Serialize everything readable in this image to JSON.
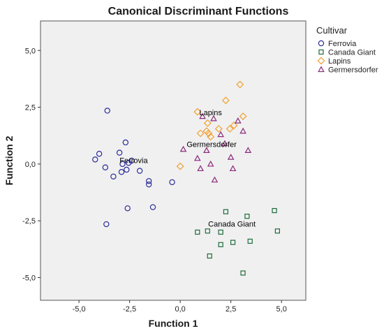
{
  "chart_data": {
    "type": "scatter",
    "title": "Canonical Discriminant Functions",
    "xlabel": "Function 1",
    "ylabel": "Function 2",
    "xlim": [
      -6.9,
      6.2
    ],
    "ylim": [
      -6.0,
      6.3
    ],
    "x_ticks": [
      -5,
      -2.5,
      0,
      2.5,
      5
    ],
    "y_ticks": [
      -5,
      -2.5,
      0,
      2.5,
      5
    ],
    "x_tick_labels": [
      "-5,0",
      "-2,5",
      "0,0",
      "2,5",
      "5,0"
    ],
    "y_tick_labels": [
      "-5,0",
      "-2,5",
      "0,0",
      "2,5",
      "5,0"
    ],
    "grid": false,
    "legend": {
      "title": "Cultivar",
      "position": "right"
    },
    "series": [
      {
        "name": "Ferrovia",
        "marker": "circle",
        "color": "#2b2b9c",
        "centroid": {
          "label": "Ferrovia",
          "x": -2.3,
          "y": 0.05
        },
        "points": [
          [
            -4.2,
            0.2
          ],
          [
            -4.0,
            0.45
          ],
          [
            -3.7,
            -0.15
          ],
          [
            -3.6,
            2.35
          ],
          [
            -3.65,
            -2.65
          ],
          [
            -3.3,
            -0.55
          ],
          [
            -3.0,
            0.5
          ],
          [
            -2.9,
            -0.35
          ],
          [
            -2.85,
            0.0
          ],
          [
            -2.7,
            0.95
          ],
          [
            -2.65,
            -0.25
          ],
          [
            -2.55,
            0.05
          ],
          [
            -2.4,
            0.15
          ],
          [
            -2.6,
            -1.95
          ],
          [
            -2.0,
            -0.3
          ],
          [
            -1.55,
            -0.75
          ],
          [
            -1.55,
            -0.9
          ],
          [
            -1.35,
            -1.9
          ],
          [
            -0.4,
            -0.8
          ]
        ]
      },
      {
        "name": "Canada Giant",
        "marker": "square",
        "color": "#1e6b3c",
        "centroid": {
          "label": "Canada Giant",
          "x": 2.55,
          "y": -2.75
        },
        "points": [
          [
            0.85,
            -3.0
          ],
          [
            1.35,
            -2.95
          ],
          [
            1.45,
            -4.05
          ],
          [
            2.0,
            -3.0
          ],
          [
            2.0,
            -3.55
          ],
          [
            2.25,
            -2.1
          ],
          [
            2.6,
            -3.45
          ],
          [
            3.1,
            -4.8
          ],
          [
            3.3,
            -2.3
          ],
          [
            3.45,
            -3.4
          ],
          [
            4.65,
            -2.05
          ],
          [
            4.8,
            -2.95
          ]
        ]
      },
      {
        "name": "Lapins",
        "marker": "diamond",
        "color": "#f0a030",
        "centroid": {
          "label": "Lapins",
          "x": 1.5,
          "y": 2.15
        },
        "points": [
          [
            0.0,
            -0.1
          ],
          [
            0.85,
            2.3
          ],
          [
            1.0,
            1.35
          ],
          [
            1.3,
            1.45
          ],
          [
            1.35,
            1.8
          ],
          [
            1.4,
            1.35
          ],
          [
            1.5,
            1.2
          ],
          [
            1.9,
            1.55
          ],
          [
            2.25,
            2.8
          ],
          [
            2.45,
            1.55
          ],
          [
            2.65,
            1.7
          ],
          [
            2.95,
            3.5
          ],
          [
            3.1,
            2.1
          ]
        ]
      },
      {
        "name": "Germersdorfer",
        "marker": "triangle",
        "color": "#8a2a7a",
        "centroid": {
          "label": "Germersdorfer",
          "x": 1.55,
          "y": 0.75
        },
        "points": [
          [
            0.15,
            0.65
          ],
          [
            0.85,
            0.25
          ],
          [
            1.0,
            -0.2
          ],
          [
            1.1,
            2.1
          ],
          [
            1.3,
            0.6
          ],
          [
            1.5,
            0.0
          ],
          [
            1.65,
            2.0
          ],
          [
            1.7,
            -0.7
          ],
          [
            2.0,
            1.3
          ],
          [
            2.2,
            0.9
          ],
          [
            2.5,
            0.3
          ],
          [
            2.6,
            -0.2
          ],
          [
            2.85,
            1.9
          ],
          [
            3.1,
            1.45
          ],
          [
            3.35,
            0.6
          ]
        ]
      }
    ]
  }
}
